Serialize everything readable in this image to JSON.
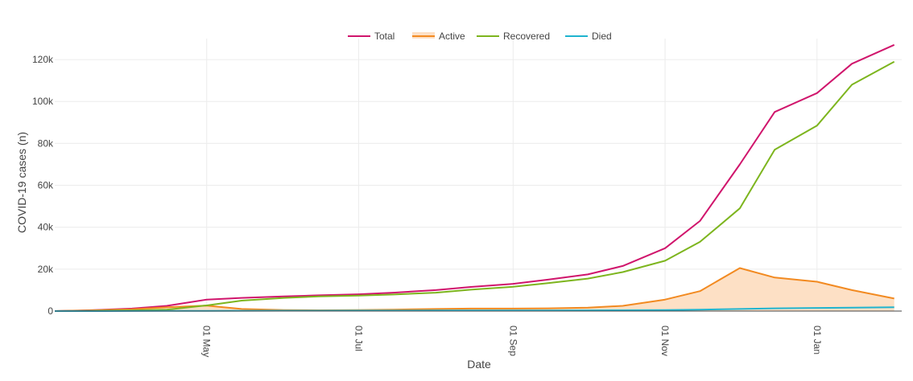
{
  "chart_data": {
    "type": "line",
    "xlabel": "Date",
    "ylabel": "COVID-19 cases (n)",
    "x_dates": [
      "2020-03-01",
      "2020-03-15",
      "2020-04-01",
      "2020-04-15",
      "2020-05-01",
      "2020-05-15",
      "2020-06-01",
      "2020-06-15",
      "2020-07-01",
      "2020-07-15",
      "2020-08-01",
      "2020-08-15",
      "2020-09-01",
      "2020-09-15",
      "2020-10-01",
      "2020-10-15",
      "2020-11-01",
      "2020-11-15",
      "2020-12-01",
      "2020-12-15",
      "2021-01-01",
      "2021-01-15",
      "2021-02-01"
    ],
    "x_ticks": [
      {
        "date": "2020-05-01",
        "label": "01 May"
      },
      {
        "date": "2020-07-01",
        "label": "01 Jul"
      },
      {
        "date": "2020-09-01",
        "label": "01 Sep"
      },
      {
        "date": "2020-11-01",
        "label": "01 Nov"
      },
      {
        "date": "2021-01-01",
        "label": "01 Jan"
      }
    ],
    "x_range": [
      "2020-03-01",
      "2021-02-04"
    ],
    "y_ticks": [
      {
        "value": 0,
        "label": "0"
      },
      {
        "value": 20000,
        "label": "20k"
      },
      {
        "value": 40000,
        "label": "40k"
      },
      {
        "value": 60000,
        "label": "60k"
      },
      {
        "value": 80000,
        "label": "80k"
      },
      {
        "value": 100000,
        "label": "100k"
      },
      {
        "value": 120000,
        "label": "120k"
      }
    ],
    "ylim": [
      0,
      130000
    ],
    "grid": true,
    "legend_placement": "top-center",
    "series": [
      {
        "key": "total",
        "name": "Total",
        "color": "#d0156c",
        "fill": false,
        "values": [
          0,
          400,
          1200,
          2500,
          5500,
          6300,
          7000,
          7500,
          8000,
          8800,
          10000,
          11500,
          13000,
          15000,
          17500,
          21500,
          30000,
          43000,
          70000,
          95000,
          104000,
          118000,
          127000
        ]
      },
      {
        "key": "active",
        "name": "Active",
        "color": "#f28a21",
        "fill": true,
        "fill_color": "#fde0c5",
        "values": [
          0,
          300,
          900,
          1800,
          2600,
          1000,
          500,
          400,
          500,
          700,
          1000,
          1200,
          1200,
          1300,
          1600,
          2500,
          5500,
          9500,
          20500,
          16000,
          14000,
          10000,
          6000
        ]
      },
      {
        "key": "recovered",
        "name": "Recovered",
        "color": "#7db51e",
        "fill": false,
        "values": [
          0,
          100,
          300,
          700,
          2700,
          5000,
          6300,
          7000,
          7400,
          7900,
          8800,
          10200,
          11600,
          13300,
          15500,
          18600,
          24000,
          33000,
          49000,
          77000,
          88500,
          108000,
          119000
        ]
      },
      {
        "key": "died",
        "name": "Died",
        "color": "#1fb4cf",
        "fill": false,
        "values": [
          0,
          10,
          30,
          60,
          100,
          150,
          180,
          200,
          220,
          240,
          260,
          280,
          300,
          320,
          350,
          400,
          500,
          700,
          1000,
          1300,
          1500,
          1650,
          1800
        ]
      }
    ]
  }
}
